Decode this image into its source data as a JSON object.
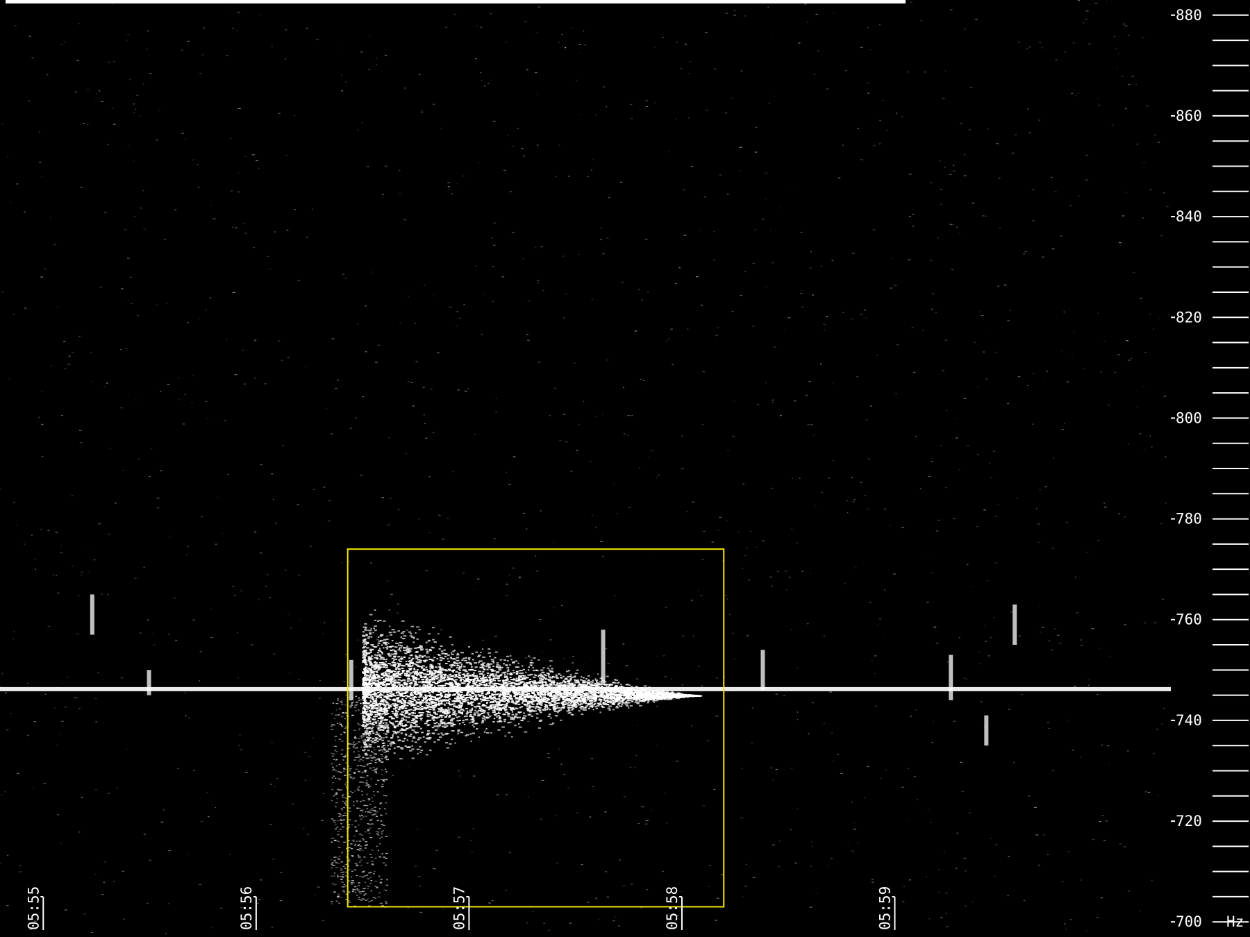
{
  "chart_data": {
    "type": "heatmap",
    "title": "",
    "xlabel": "",
    "ylabel": "",
    "y_unit": "Hz",
    "xlim": [
      "05:54:48",
      "06:00:18"
    ],
    "ylim": [
      697,
      883
    ],
    "y_major_ticks": [
      700,
      720,
      740,
      760,
      780,
      800,
      820,
      840,
      860,
      880
    ],
    "y_minor_step": 5,
    "x_ticks": [
      "05:55",
      "05:56",
      "05:57",
      "05:58",
      "05:59"
    ],
    "grid": false,
    "background_color": "#000000",
    "signal_color": "#ffffff",
    "carrier_line": {
      "freq": 746.2,
      "from": "05:54:48",
      "to": "06:00:18"
    },
    "reflection_blob": {
      "start": "05:56:30",
      "end": "05:58:05",
      "freq_low": 726,
      "freq_high": 763,
      "peak_freq": 745
    },
    "vertical_streaks": [
      {
        "time": "05:55:14",
        "freq_low": 757,
        "freq_high": 765
      },
      {
        "time": "05:55:30",
        "freq_low": 745,
        "freq_high": 750
      },
      {
        "time": "05:56:27",
        "freq_low": 744,
        "freq_high": 752
      },
      {
        "time": "05:57:38",
        "freq_low": 747,
        "freq_high": 758
      },
      {
        "time": "05:58:23",
        "freq_low": 746,
        "freq_high": 754
      },
      {
        "time": "05:59:16",
        "freq_low": 744,
        "freq_high": 753
      },
      {
        "time": "05:59:34",
        "freq_low": 755,
        "freq_high": 763
      },
      {
        "time": "05:59:26",
        "freq_low": 735,
        "freq_high": 741
      }
    ],
    "highlight_box": {
      "time_start": "05:56:26",
      "time_end": "05:58:12",
      "freq_low": 703,
      "freq_high": 774,
      "color": "#f2e600"
    },
    "top_bar_color": "#ffffff"
  }
}
